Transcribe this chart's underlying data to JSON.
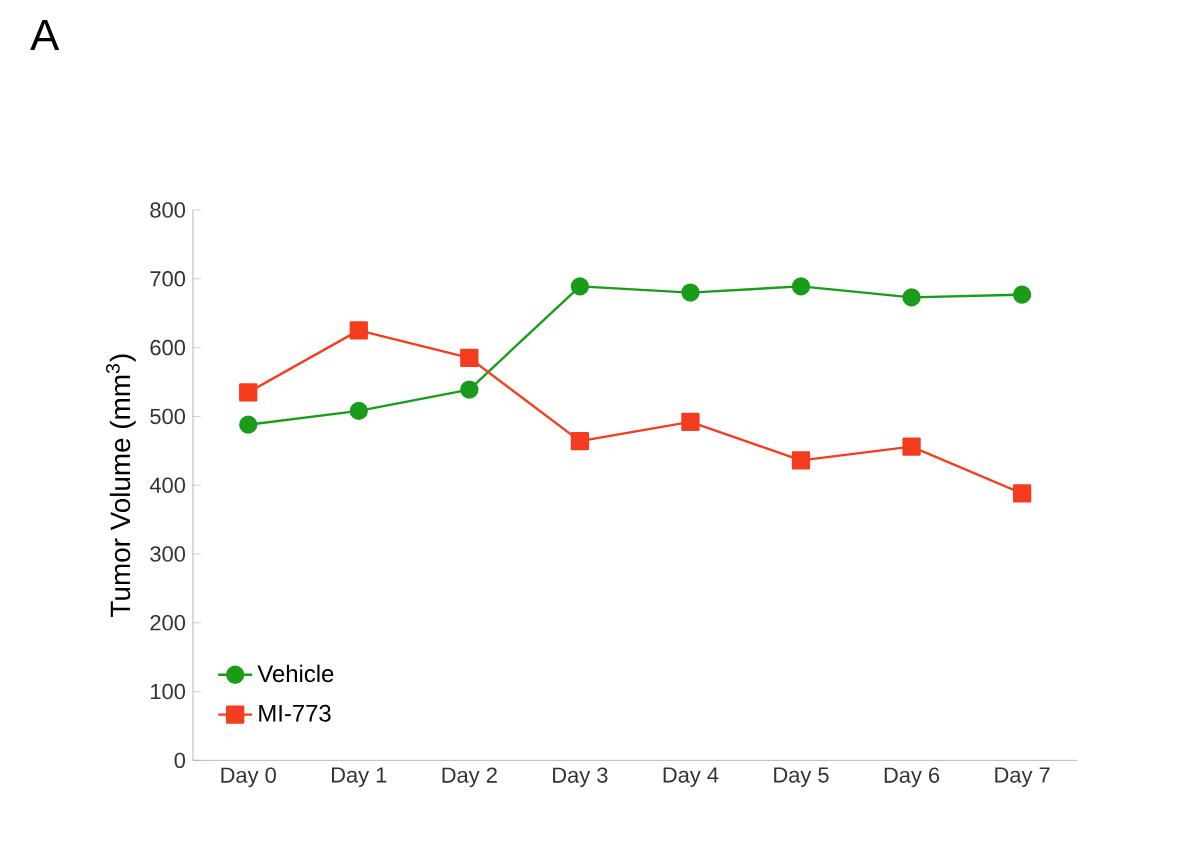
{
  "chart_data": {
    "type": "line",
    "title": "A",
    "ylabel": "Tumor Volume (mm$^{3}$)",
    "categories": [
      "Day 0",
      "Day 1",
      "Day 2",
      "Day 3",
      "Day 4",
      "Day 5",
      "Day 6",
      "Day 7"
    ],
    "series": [
      {
        "name": "Vehicle",
        "color": "#1a9c1a",
        "marker": "circle",
        "values": [
          488,
          508,
          539,
          689,
          680,
          689,
          673,
          677
        ]
      },
      {
        "name": "MI-773",
        "color": "#f43d1f",
        "marker": "square",
        "values": [
          535,
          625,
          585,
          464,
          492,
          436,
          456,
          388
        ]
      }
    ],
    "ylim": [
      0,
      800
    ],
    "yticks": [
      0,
      100,
      200,
      300,
      400,
      500,
      600,
      700,
      800
    ],
    "legend": "bottom left",
    "grid": false,
    "line_style": "solid"
  }
}
